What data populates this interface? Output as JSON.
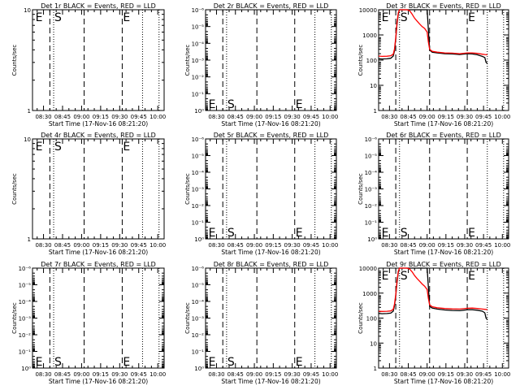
{
  "figure": {
    "background": "#ffffff",
    "colors": {
      "events": "#000000",
      "lld": "#ff0000",
      "axes": "#000000"
    }
  },
  "chart_data": [
    {
      "type": "line",
      "title": "Det 1r BLACK = Events, RED = LLD",
      "xlabel": "Start Time (17-Nov-16 08:21:20)",
      "ylabel": "Counts/sec",
      "xticks": [
        "08:30",
        "08:45",
        "09:00",
        "09:15",
        "09:30",
        "09:45",
        "10:00"
      ],
      "yscale": "log",
      "yticks": [
        "1",
        "10"
      ],
      "ylim": [
        1,
        10
      ],
      "xlim": [
        "08:21:20",
        "10:05"
      ],
      "markers": [
        {
          "label": "E",
          "time": "08:23",
          "style": "none"
        },
        {
          "label": "S",
          "time": "08:38",
          "style": "dotted"
        },
        {
          "label": "",
          "time": "08:35",
          "style": "dashed"
        },
        {
          "label": "",
          "time": "09:02",
          "style": "dashed"
        },
        {
          "label": "E",
          "time": "09:32",
          "style": "dashed"
        },
        {
          "label": "",
          "time": "09:48",
          "style": "dotted"
        },
        {
          "label": "",
          "time": "10:01",
          "style": "dotted"
        }
      ],
      "label_pos": "top",
      "series": []
    },
    {
      "type": "line",
      "title": "Det 2r BLACK = Events, RED = LLD",
      "xlabel": "Start Time (17-Nov-16 08:21:20)",
      "ylabel": "Counts/sec",
      "xticks": [
        "08:30",
        "08:45",
        "09:00",
        "09:15",
        "09:30",
        "09:45",
        "10:00"
      ],
      "yscale": "log",
      "yticks": [
        "10⁰",
        "10⁻¹",
        "10⁻²",
        "10⁻³",
        "10⁻⁴",
        "10⁻⁵",
        "10⁻⁶"
      ],
      "ylim": [
        1,
        1e-06
      ],
      "xlim": [
        "08:21:20",
        "10:05"
      ],
      "markers": [
        {
          "label": "E",
          "time": "08:23",
          "style": "none"
        },
        {
          "label": "",
          "time": "08:35",
          "style": "dashed"
        },
        {
          "label": "S",
          "time": "08:38",
          "style": "dotted"
        },
        {
          "label": "",
          "time": "09:02",
          "style": "dashed"
        },
        {
          "label": "E",
          "time": "09:32",
          "style": "dashed"
        },
        {
          "label": "",
          "time": "09:48",
          "style": "dotted"
        },
        {
          "label": "",
          "time": "10:01",
          "style": "dotted"
        }
      ],
      "label_pos": "bottom",
      "series": []
    },
    {
      "type": "line",
      "title": "Det 3r BLACK = Events, RED = LLD",
      "xlabel": "Start Time (17-Nov-16 08:21:20)",
      "ylabel": "Counts/sec",
      "xticks": [
        "08:30",
        "08:45",
        "09:00",
        "09:15",
        "09:30",
        "09:45",
        "10:00"
      ],
      "yscale": "log",
      "yticks": [
        "1",
        "10",
        "100",
        "1000",
        "10000"
      ],
      "ylim": [
        1,
        12000
      ],
      "xlim": [
        "08:21:20",
        "10:05"
      ],
      "markers": [
        {
          "label": "E",
          "time": "08:23",
          "style": "none"
        },
        {
          "label": "",
          "time": "08:35",
          "style": "dashed"
        },
        {
          "label": "S",
          "time": "08:38",
          "style": "dotted"
        },
        {
          "label": "",
          "time": "09:02",
          "style": "dashed"
        },
        {
          "label": "E",
          "time": "09:32",
          "style": "dashed"
        },
        {
          "label": "",
          "time": "09:48",
          "style": "dotted"
        },
        {
          "label": "",
          "time": "10:01",
          "style": "dotted"
        }
      ],
      "label_pos": "top",
      "series": [
        {
          "color": "#000000",
          "x": [
            "08:21:20",
            "08:24",
            "08:28",
            "08:31",
            "08:33",
            "08:34",
            "08:35",
            "08:36",
            "08:37",
            "08:38",
            "08:39",
            "08:40",
            "08:42",
            "08:44",
            "08:46",
            "08:48",
            "08:50",
            "08:52",
            "08:54",
            "08:56",
            "08:58",
            "09:00",
            "09:02",
            "09:04",
            "09:08",
            "09:14",
            "09:20",
            "09:26",
            "09:32",
            "09:36",
            "09:40",
            "09:44",
            "09:46",
            "09:47",
            "09:48"
          ],
          "y": [
            125,
            122,
            124,
            130,
            160,
            260,
            800,
            3000,
            8000,
            12000,
            12000,
            12000,
            12000,
            12000,
            12000,
            12000,
            12000,
            12000,
            12000,
            12000,
            12000,
            12000,
            280,
            230,
            215,
            200,
            195,
            185,
            200,
            195,
            180,
            155,
            140,
            90,
            80
          ]
        },
        {
          "color": "#ff0000",
          "x": [
            "08:21:20",
            "08:24",
            "08:28",
            "08:31",
            "08:33",
            "08:34",
            "08:35",
            "08:36",
            "08:37",
            "08:38",
            "08:40",
            "08:42",
            "08:44",
            "08:46",
            "08:48",
            "08:50",
            "08:52",
            "08:54",
            "08:56",
            "08:58",
            "09:00",
            "09:01",
            "09:02",
            "09:04",
            "09:08",
            "09:14",
            "09:20",
            "09:26",
            "09:32",
            "09:36",
            "09:40",
            "09:44",
            "09:46",
            "09:48"
          ],
          "y": [
            160,
            155,
            157,
            165,
            190,
            300,
            900,
            3500,
            9000,
            12000,
            12000,
            12000,
            12000,
            11000,
            8000,
            5500,
            4200,
            3200,
            2500,
            2100,
            1500,
            600,
            300,
            250,
            230,
            215,
            210,
            200,
            215,
            215,
            205,
            190,
            185,
            180
          ]
        }
      ]
    },
    {
      "type": "line",
      "title": "Det 4r BLACK = Events, RED = LLD",
      "xlabel": "Start Time (17-Nov-16 08:21:20)",
      "ylabel": "Counts/sec",
      "xticks": [
        "08:30",
        "08:45",
        "09:00",
        "09:15",
        "09:30",
        "09:45",
        "10:00"
      ],
      "yscale": "log",
      "yticks": [
        "1",
        "10"
      ],
      "ylim": [
        1,
        10
      ],
      "xlim": [
        "08:21:20",
        "10:05"
      ],
      "markers": [
        {
          "label": "E",
          "time": "08:23",
          "style": "none"
        },
        {
          "label": "",
          "time": "08:35",
          "style": "dashed"
        },
        {
          "label": "S",
          "time": "08:38",
          "style": "dotted"
        },
        {
          "label": "",
          "time": "09:02",
          "style": "dashed"
        },
        {
          "label": "E",
          "time": "09:32",
          "style": "dashed"
        },
        {
          "label": "",
          "time": "09:48",
          "style": "dotted"
        },
        {
          "label": "",
          "time": "10:01",
          "style": "dotted"
        }
      ],
      "label_pos": "top",
      "series": []
    },
    {
      "type": "line",
      "title": "Det 5r BLACK = Events, RED = LLD",
      "xlabel": "Start Time (17-Nov-16 08:21:20)",
      "ylabel": "Counts/sec",
      "xticks": [
        "08:30",
        "08:45",
        "09:00",
        "09:15",
        "09:30",
        "09:45",
        "10:00"
      ],
      "yscale": "log",
      "yticks": [
        "10⁰",
        "10⁻¹",
        "10⁻²",
        "10⁻³",
        "10⁻⁴",
        "10⁻⁵",
        "10⁻⁶"
      ],
      "ylim": [
        1,
        1e-06
      ],
      "xlim": [
        "08:21:20",
        "10:05"
      ],
      "markers": [
        {
          "label": "E",
          "time": "08:23",
          "style": "none"
        },
        {
          "label": "",
          "time": "08:35",
          "style": "dashed"
        },
        {
          "label": "S",
          "time": "08:38",
          "style": "dotted"
        },
        {
          "label": "",
          "time": "09:02",
          "style": "dashed"
        },
        {
          "label": "E",
          "time": "09:32",
          "style": "dashed"
        },
        {
          "label": "",
          "time": "09:48",
          "style": "dotted"
        },
        {
          "label": "",
          "time": "10:01",
          "style": "dotted"
        }
      ],
      "label_pos": "bottom",
      "series": []
    },
    {
      "type": "line",
      "title": "Det 6r BLACK = Events, RED = LLD",
      "xlabel": "Start Time (17-Nov-16 08:21:20)",
      "ylabel": "Counts/sec",
      "xticks": [
        "08:30",
        "08:45",
        "09:00",
        "09:15",
        "09:30",
        "09:45",
        "10:00"
      ],
      "yscale": "log",
      "yticks": [
        "10⁰",
        "10⁻¹",
        "10⁻²",
        "10⁻³",
        "10⁻⁴",
        "10⁻⁵",
        "10⁻⁶"
      ],
      "ylim": [
        1,
        1e-06
      ],
      "xlim": [
        "08:21:20",
        "10:05"
      ],
      "markers": [
        {
          "label": "E",
          "time": "08:23",
          "style": "none"
        },
        {
          "label": "",
          "time": "08:35",
          "style": "dashed"
        },
        {
          "label": "S",
          "time": "08:38",
          "style": "dotted"
        },
        {
          "label": "",
          "time": "09:02",
          "style": "dashed"
        },
        {
          "label": "E",
          "time": "09:32",
          "style": "dashed"
        },
        {
          "label": "",
          "time": "09:48",
          "style": "dotted"
        },
        {
          "label": "",
          "time": "10:01",
          "style": "dotted"
        }
      ],
      "label_pos": "bottom",
      "series": []
    },
    {
      "type": "line",
      "title": "Det 7r BLACK = Events, RED = LLD",
      "xlabel": "Start Time (17-Nov-16 08:21:20)",
      "ylabel": "Counts/sec",
      "xticks": [
        "08:30",
        "08:45",
        "09:00",
        "09:15",
        "09:30",
        "09:45",
        "10:00"
      ],
      "yscale": "log",
      "yticks": [
        "10⁰",
        "10⁻¹",
        "10⁻²",
        "10⁻³",
        "10⁻⁴",
        "10⁻⁵",
        "10⁻⁶"
      ],
      "ylim": [
        1,
        1e-06
      ],
      "xlim": [
        "08:21:20",
        "10:05"
      ],
      "markers": [
        {
          "label": "E",
          "time": "08:23",
          "style": "none"
        },
        {
          "label": "",
          "time": "08:35",
          "style": "dashed"
        },
        {
          "label": "S",
          "time": "08:38",
          "style": "dotted"
        },
        {
          "label": "",
          "time": "09:02",
          "style": "dashed"
        },
        {
          "label": "E",
          "time": "09:32",
          "style": "dashed"
        },
        {
          "label": "",
          "time": "09:48",
          "style": "dotted"
        },
        {
          "label": "",
          "time": "10:01",
          "style": "dotted"
        }
      ],
      "label_pos": "bottom",
      "series": []
    },
    {
      "type": "line",
      "title": "Det 8r BLACK = Events, RED = LLD",
      "xlabel": "Start Time (17-Nov-16 08:21:20)",
      "ylabel": "Counts/sec",
      "xticks": [
        "08:30",
        "08:45",
        "09:00",
        "09:15",
        "09:30",
        "09:45",
        "10:00"
      ],
      "yscale": "log",
      "yticks": [
        "10⁰",
        "10⁻¹",
        "10⁻²",
        "10⁻³",
        "10⁻⁴",
        "10⁻⁵",
        "10⁻⁶"
      ],
      "ylim": [
        1,
        1e-06
      ],
      "xlim": [
        "08:21:20",
        "10:05"
      ],
      "markers": [
        {
          "label": "E",
          "time": "08:23",
          "style": "none"
        },
        {
          "label": "",
          "time": "08:35",
          "style": "dashed"
        },
        {
          "label": "S",
          "time": "08:38",
          "style": "dotted"
        },
        {
          "label": "",
          "time": "09:02",
          "style": "dashed"
        },
        {
          "label": "E",
          "time": "09:32",
          "style": "dashed"
        },
        {
          "label": "",
          "time": "09:48",
          "style": "dotted"
        },
        {
          "label": "",
          "time": "10:01",
          "style": "dotted"
        }
      ],
      "label_pos": "bottom",
      "series": []
    },
    {
      "type": "line",
      "title": "Det 9r BLACK = Events, RED = LLD",
      "xlabel": "Start Time (17-Nov-16 08:21:20)",
      "ylabel": "Counts/sec",
      "xticks": [
        "08:30",
        "08:45",
        "09:00",
        "09:15",
        "09:30",
        "09:45",
        "10:00"
      ],
      "yscale": "log",
      "yticks": [
        "1",
        "10",
        "100",
        "1000",
        "10000"
      ],
      "ylim": [
        1,
        12000
      ],
      "xlim": [
        "08:21:20",
        "10:05"
      ],
      "markers": [
        {
          "label": "E",
          "time": "08:23",
          "style": "none"
        },
        {
          "label": "",
          "time": "08:35",
          "style": "dashed"
        },
        {
          "label": "S",
          "time": "08:38",
          "style": "dotted"
        },
        {
          "label": "",
          "time": "09:02",
          "style": "dashed"
        },
        {
          "label": "E",
          "time": "09:32",
          "style": "dashed"
        },
        {
          "label": "",
          "time": "09:48",
          "style": "dotted"
        },
        {
          "label": "",
          "time": "10:01",
          "style": "dotted"
        }
      ],
      "label_pos": "top",
      "series": [
        {
          "color": "#000000",
          "x": [
            "08:21:20",
            "08:24",
            "08:28",
            "08:31",
            "08:33",
            "08:34",
            "08:35",
            "08:36",
            "08:37",
            "08:38",
            "08:40",
            "08:44",
            "08:48",
            "08:52",
            "08:56",
            "09:00",
            "09:02",
            "09:04",
            "09:08",
            "09:14",
            "09:20",
            "09:26",
            "09:32",
            "09:36",
            "09:40",
            "09:44",
            "09:46",
            "09:47",
            "09:48"
          ],
          "y": [
            170,
            165,
            168,
            175,
            210,
            350,
            900,
            3000,
            8000,
            12000,
            12000,
            12000,
            12000,
            12000,
            12000,
            12000,
            330,
            280,
            255,
            235,
            225,
            220,
            240,
            240,
            230,
            210,
            180,
            110,
            95
          ]
        },
        {
          "color": "#ff0000",
          "x": [
            "08:21:20",
            "08:24",
            "08:28",
            "08:31",
            "08:33",
            "08:34",
            "08:35",
            "08:36",
            "08:37",
            "08:38",
            "08:40",
            "08:44",
            "08:46",
            "08:48",
            "08:50",
            "08:52",
            "08:54",
            "08:56",
            "08:58",
            "09:00",
            "09:01",
            "09:02",
            "09:04",
            "09:08",
            "09:14",
            "09:20",
            "09:26",
            "09:32",
            "09:36",
            "09:40",
            "09:44",
            "09:46",
            "09:48"
          ],
          "y": [
            210,
            205,
            208,
            215,
            250,
            400,
            1000,
            3600,
            9000,
            12000,
            12000,
            12000,
            11000,
            8500,
            6000,
            4500,
            3500,
            2700,
            2200,
            1600,
            700,
            380,
            320,
            290,
            270,
            260,
            255,
            275,
            280,
            270,
            255,
            250,
            245
          ]
        }
      ]
    }
  ]
}
